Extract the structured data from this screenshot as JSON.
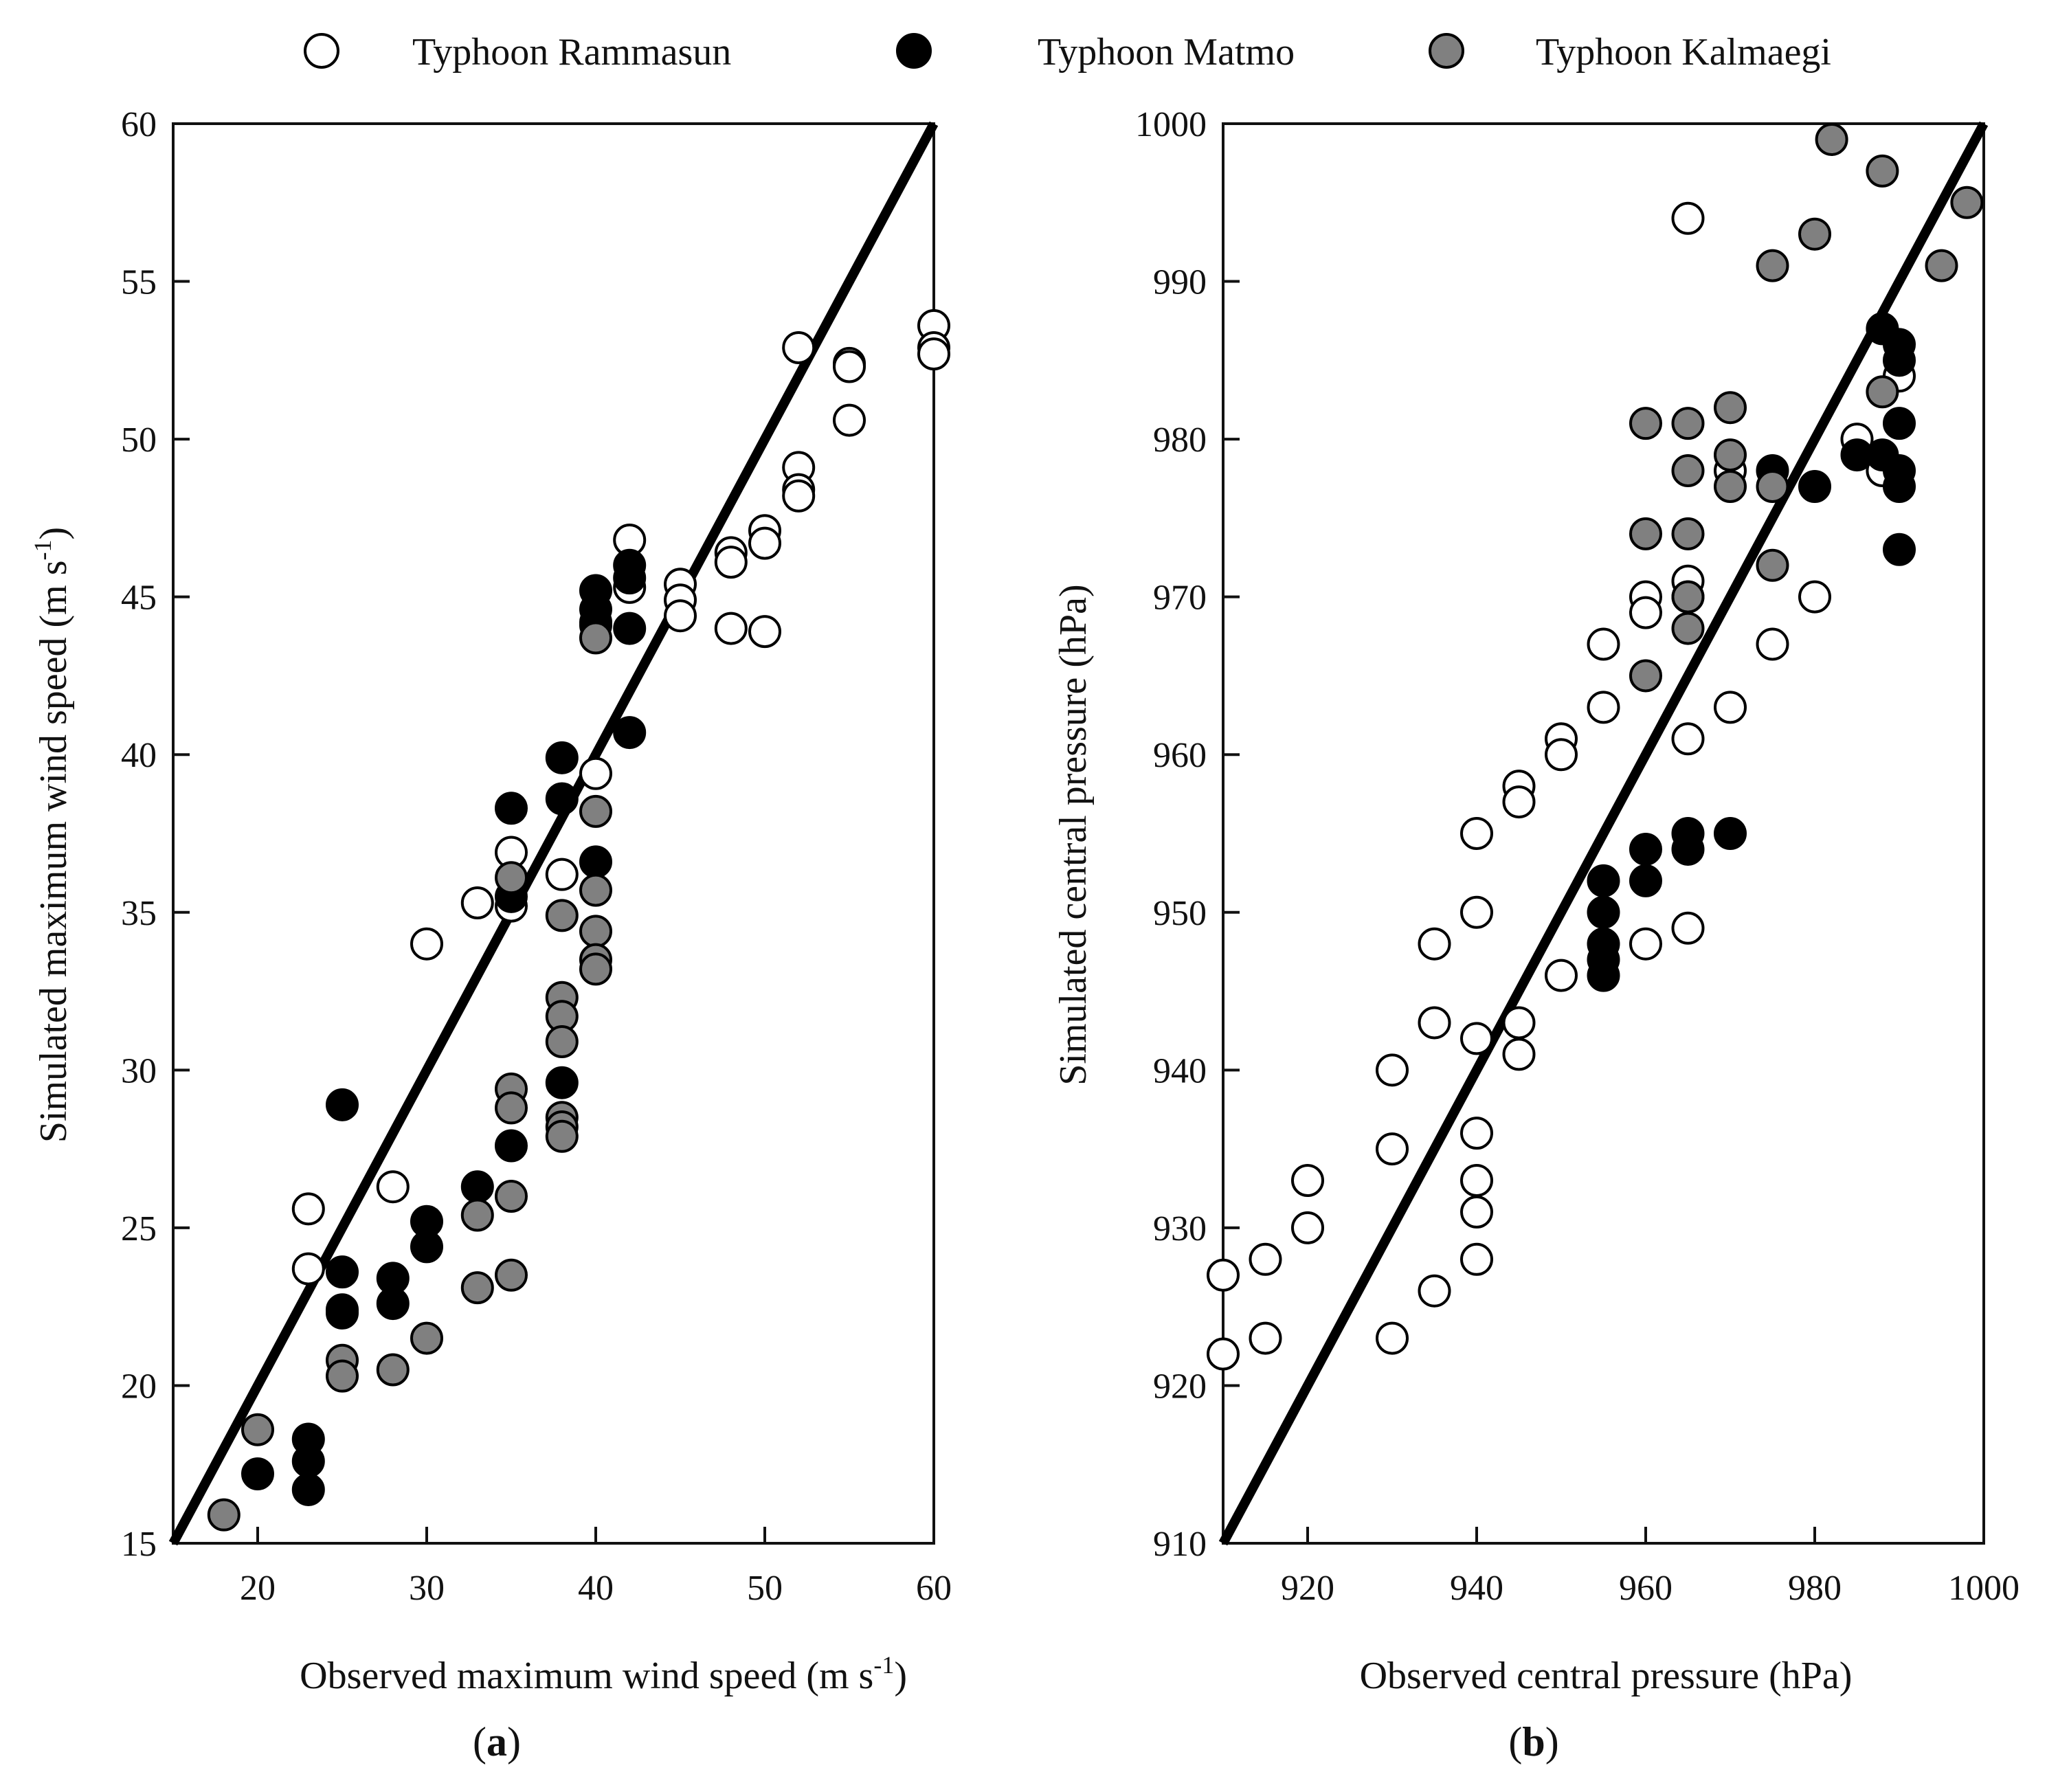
{
  "legend": {
    "series": [
      {
        "name": "Typhoon Rammasun",
        "color": "#ffffff"
      },
      {
        "name": "Typhoon Matmo",
        "color": "#000000"
      },
      {
        "name": "Typhoon Kalmaegi",
        "color": "#808080"
      }
    ]
  },
  "chart_data": [
    {
      "type": "scatter",
      "panel": "(a)",
      "panel_letter": "a",
      "xlabel": "Observed maximum wind speed (m s",
      "ylabel": "Simulated maximum wind speed (m s",
      "unit_superscript": "-1",
      "xlim": [
        15,
        60
      ],
      "ylim": [
        15,
        60
      ],
      "xticks": [
        20,
        30,
        40,
        50,
        60
      ],
      "yticks": [
        15,
        20,
        25,
        30,
        35,
        40,
        45,
        50,
        55,
        60
      ],
      "xtick_labels": [
        "20",
        "30",
        "40",
        "50",
        "60"
      ],
      "ytick_labels": [
        "15",
        "20",
        "25",
        "30",
        "35",
        "40",
        "45",
        "50",
        "55",
        "60"
      ],
      "reference_line": [
        [
          15,
          15
        ],
        [
          60,
          60
        ]
      ],
      "series": [
        {
          "name": "Typhoon Rammasun",
          "color": "#ffffff",
          "points": [
            [
              23,
              25.6
            ],
            [
              23,
              23.7
            ],
            [
              28,
              26.3
            ],
            [
              30,
              34
            ],
            [
              33,
              35.3
            ],
            [
              35,
              36.9
            ],
            [
              35,
              35.2
            ],
            [
              38,
              36.2
            ],
            [
              40,
              39.4
            ],
            [
              40,
              44.2
            ],
            [
              42,
              46.8
            ],
            [
              42,
              45.3
            ],
            [
              45,
              45.4
            ],
            [
              45,
              44.9
            ],
            [
              45,
              44.4
            ],
            [
              48,
              46.4
            ],
            [
              48,
              46.1
            ],
            [
              48,
              44
            ],
            [
              50,
              47.1
            ],
            [
              50,
              46.7
            ],
            [
              50,
              43.9
            ],
            [
              52,
              52.9
            ],
            [
              52,
              49.1
            ],
            [
              52,
              48.4
            ],
            [
              52,
              48.2
            ],
            [
              55,
              52.4
            ],
            [
              55,
              52.3
            ],
            [
              55,
              50.6
            ],
            [
              60,
              53.6
            ],
            [
              60,
              52.9
            ],
            [
              60,
              52.7
            ]
          ]
        },
        {
          "name": "Typhoon Matmo",
          "color": "#000000",
          "points": [
            [
              20,
              17.2
            ],
            [
              23,
              18.3
            ],
            [
              23,
              17.6
            ],
            [
              23,
              16.7
            ],
            [
              25,
              28.9
            ],
            [
              25,
              23.6
            ],
            [
              25,
              22.4
            ],
            [
              25,
              22.3
            ],
            [
              28,
              23.4
            ],
            [
              28,
              22.6
            ],
            [
              30,
              25.2
            ],
            [
              30,
              24.4
            ],
            [
              33,
              26.3
            ],
            [
              35,
              38.3
            ],
            [
              35,
              35.5
            ],
            [
              35,
              27.6
            ],
            [
              38,
              39.9
            ],
            [
              38,
              38.6
            ],
            [
              38,
              29.6
            ],
            [
              40,
              45.2
            ],
            [
              40,
              44.6
            ],
            [
              40,
              44.1
            ],
            [
              40,
              36.6
            ],
            [
              42,
              46
            ],
            [
              42,
              45.6
            ],
            [
              42,
              44
            ],
            [
              42,
              40.7
            ]
          ]
        },
        {
          "name": "Typhoon Kalmaegi",
          "color": "#808080",
          "points": [
            [
              18,
              15.9
            ],
            [
              20,
              18.6
            ],
            [
              25,
              20.8
            ],
            [
              25,
              20.3
            ],
            [
              28,
              20.5
            ],
            [
              30,
              21.5
            ],
            [
              33,
              25.4
            ],
            [
              33,
              23.1
            ],
            [
              35,
              36.1
            ],
            [
              35,
              29.4
            ],
            [
              35,
              28.8
            ],
            [
              35,
              26
            ],
            [
              35,
              23.5
            ],
            [
              38,
              34.9
            ],
            [
              38,
              32.3
            ],
            [
              38,
              31.7
            ],
            [
              38,
              30.9
            ],
            [
              38,
              28.5
            ],
            [
              38,
              28.2
            ],
            [
              38,
              27.9
            ],
            [
              40,
              43.7
            ],
            [
              40,
              38.2
            ],
            [
              40,
              35.7
            ],
            [
              40,
              34.4
            ],
            [
              40,
              33.5
            ],
            [
              40,
              33.2
            ]
          ]
        }
      ]
    },
    {
      "type": "scatter",
      "panel": "(b)",
      "panel_letter": "b",
      "xlabel": "Observed central pressure (hPa)",
      "ylabel": "Simulated central pressure (hPa)",
      "xlim": [
        910,
        1000
      ],
      "ylim": [
        910,
        1000
      ],
      "xticks": [
        920,
        940,
        960,
        980,
        1000
      ],
      "yticks": [
        910,
        920,
        930,
        940,
        950,
        960,
        970,
        980,
        990,
        1000
      ],
      "xtick_labels": [
        "920",
        "940",
        "960",
        "980",
        "1000"
      ],
      "ytick_labels": [
        "910",
        "920",
        "930",
        "940",
        "950",
        "960",
        "970",
        "980",
        "990",
        "1000"
      ],
      "reference_line": [
        [
          910,
          910
        ],
        [
          1000,
          1000
        ]
      ],
      "series": [
        {
          "name": "Typhoon Rammasun",
          "color": "#ffffff",
          "points": [
            [
              910,
              927
            ],
            [
              910,
              922
            ],
            [
              915,
              928
            ],
            [
              915,
              923
            ],
            [
              920,
              933
            ],
            [
              920,
              930
            ],
            [
              930,
              940
            ],
            [
              930,
              935
            ],
            [
              930,
              923
            ],
            [
              935,
              948
            ],
            [
              935,
              943
            ],
            [
              935,
              926
            ],
            [
              940,
              955
            ],
            [
              940,
              950
            ],
            [
              940,
              942
            ],
            [
              940,
              936
            ],
            [
              940,
              933
            ],
            [
              940,
              931
            ],
            [
              940,
              928
            ],
            [
              945,
              958
            ],
            [
              945,
              957
            ],
            [
              945,
              943
            ],
            [
              945,
              941
            ],
            [
              950,
              961
            ],
            [
              950,
              960
            ],
            [
              950,
              946
            ],
            [
              955,
              967
            ],
            [
              955,
              963
            ],
            [
              960,
              970
            ],
            [
              960,
              969
            ],
            [
              960,
              948
            ],
            [
              965,
              994
            ],
            [
              965,
              971
            ],
            [
              965,
              970
            ],
            [
              965,
              961
            ],
            [
              965,
              949
            ],
            [
              970,
              978
            ],
            [
              970,
              963
            ],
            [
              975,
              967
            ],
            [
              980,
              970
            ],
            [
              985,
              980
            ],
            [
              988,
              978
            ],
            [
              990,
              984
            ]
          ]
        },
        {
          "name": "Typhoon Matmo",
          "color": "#000000",
          "points": [
            [
              955,
              952
            ],
            [
              955,
              950
            ],
            [
              955,
              948
            ],
            [
              955,
              947
            ],
            [
              955,
              946
            ],
            [
              960,
              954
            ],
            [
              960,
              952
            ],
            [
              965,
              955
            ],
            [
              965,
              954
            ],
            [
              970,
              955
            ],
            [
              975,
              978
            ],
            [
              980,
              977
            ],
            [
              985,
              979
            ],
            [
              988,
              987
            ],
            [
              988,
              979
            ],
            [
              990,
              986
            ],
            [
              990,
              985
            ],
            [
              990,
              981
            ],
            [
              990,
              978
            ],
            [
              990,
              977
            ],
            [
              990,
              973
            ]
          ]
        },
        {
          "name": "Typhoon Kalmaegi",
          "color": "#808080",
          "points": [
            [
              960,
              981
            ],
            [
              960,
              974
            ],
            [
              960,
              965
            ],
            [
              965,
              981
            ],
            [
              965,
              978
            ],
            [
              965,
              974
            ],
            [
              965,
              970
            ],
            [
              965,
              968
            ],
            [
              970,
              982
            ],
            [
              970,
              979
            ],
            [
              970,
              977
            ],
            [
              975,
              991
            ],
            [
              975,
              977
            ],
            [
              975,
              972
            ],
            [
              980,
              993
            ],
            [
              982,
              999
            ],
            [
              988,
              997
            ],
            [
              988,
              983
            ],
            [
              995,
              991
            ],
            [
              998,
              995
            ]
          ]
        }
      ]
    }
  ]
}
